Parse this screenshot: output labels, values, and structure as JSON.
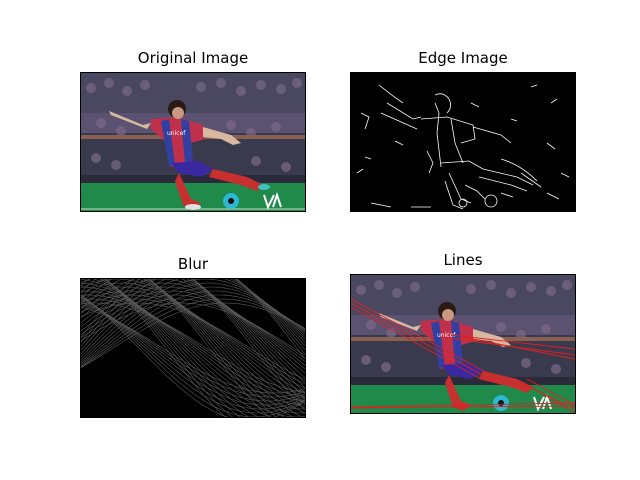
{
  "panels": [
    {
      "title": "Original Image"
    },
    {
      "title": "Edge Image"
    },
    {
      "title": "Blur"
    },
    {
      "title": "Lines"
    }
  ],
  "photo": {
    "shirt_text": "unicef"
  }
}
